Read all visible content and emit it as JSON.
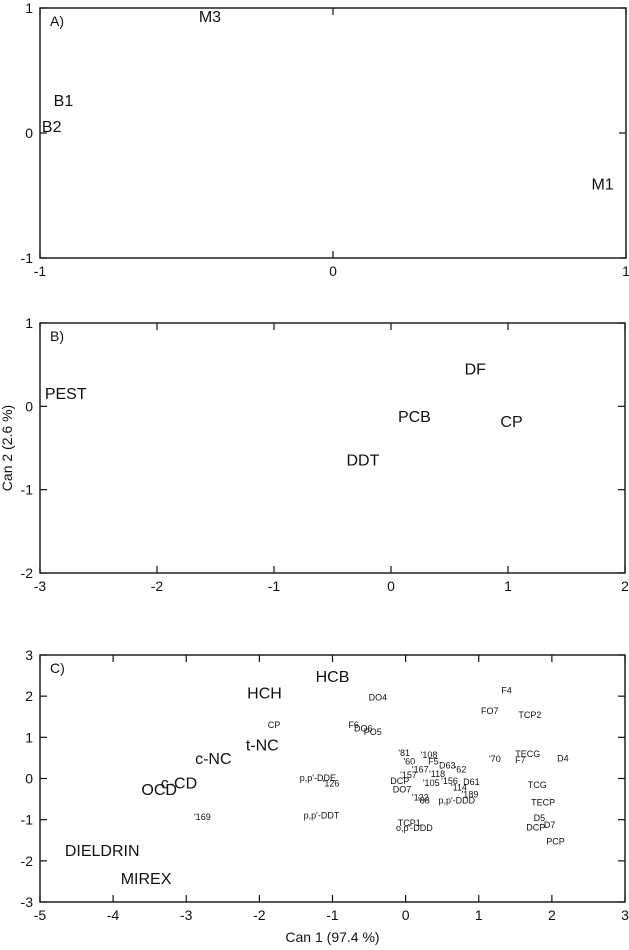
{
  "chart_data": [
    {
      "type": "scatter",
      "panel": "A)",
      "xlim": [
        -1,
        1
      ],
      "ylim": [
        -1,
        1
      ],
      "xticks": [
        -1,
        0,
        1
      ],
      "yticks": [
        -1,
        0,
        1
      ],
      "xlabel": "",
      "ylabel": "",
      "points": [
        {
          "label": "M3",
          "x": -0.42,
          "y": 0.92
        },
        {
          "label": "B1",
          "x": -0.92,
          "y": 0.25
        },
        {
          "label": "B2",
          "x": -0.96,
          "y": 0.04
        },
        {
          "label": "M1",
          "x": 0.92,
          "y": -0.42
        }
      ]
    },
    {
      "type": "scatter",
      "panel": "B)",
      "xlim": [
        -3,
        2
      ],
      "ylim": [
        -2,
        1
      ],
      "xticks": [
        -3,
        -2,
        -1,
        0,
        1,
        2
      ],
      "yticks": [
        -2,
        -1,
        0,
        1
      ],
      "xlabel": "",
      "ylabel": "Can 2 (2.6 %)",
      "points": [
        {
          "label": "PEST",
          "x": -2.78,
          "y": 0.14
        },
        {
          "label": "DF",
          "x": 0.72,
          "y": 0.43
        },
        {
          "label": "PCB",
          "x": 0.2,
          "y": -0.14
        },
        {
          "label": "CP",
          "x": 1.03,
          "y": -0.2
        },
        {
          "label": "DDT",
          "x": -0.24,
          "y": -0.66
        }
      ]
    },
    {
      "type": "scatter",
      "panel": "C)",
      "xlim": [
        -5,
        3
      ],
      "ylim": [
        -3,
        3
      ],
      "xticks": [
        -5,
        -4,
        -3,
        -2,
        -1,
        0,
        1,
        2,
        3
      ],
      "yticks": [
        -3,
        -2,
        -1,
        0,
        1,
        2,
        3
      ],
      "xlabel": "Can 1 (97.4 %)",
      "ylabel": "",
      "points": [
        {
          "label": "HCB",
          "x": -1.0,
          "y": 2.45,
          "size": "large"
        },
        {
          "label": "HCH",
          "x": -1.93,
          "y": 2.05,
          "size": "large"
        },
        {
          "label": "t-NC",
          "x": -1.96,
          "y": 0.78,
          "size": "large"
        },
        {
          "label": "c-NC",
          "x": -2.63,
          "y": 0.45,
          "size": "large"
        },
        {
          "label": "c-CD",
          "x": -3.1,
          "y": -0.14,
          "size": "large"
        },
        {
          "label": "OCD",
          "x": -3.37,
          "y": -0.3,
          "size": "large"
        },
        {
          "label": "DIELDRIN",
          "x": -4.15,
          "y": -1.78,
          "size": "large"
        },
        {
          "label": "MIREX",
          "x": -3.55,
          "y": -2.46,
          "size": "large"
        },
        {
          "label": "DO4",
          "x": -0.38,
          "y": 1.95,
          "size": "small"
        },
        {
          "label": "F4",
          "x": 1.38,
          "y": 2.12,
          "size": "small"
        },
        {
          "label": "FO7",
          "x": 1.15,
          "y": 1.62,
          "size": "small"
        },
        {
          "label": "TCP2",
          "x": 1.7,
          "y": 1.53,
          "size": "small"
        },
        {
          "label": "CP",
          "x": -1.8,
          "y": 1.28,
          "size": "small"
        },
        {
          "label": "F6",
          "x": -0.71,
          "y": 1.28,
          "size": "small"
        },
        {
          "label": "DO6",
          "x": -0.58,
          "y": 1.2,
          "size": "small"
        },
        {
          "label": "PO5",
          "x": -0.45,
          "y": 1.12,
          "size": "small"
        },
        {
          "label": "'81",
          "x": -0.02,
          "y": 0.6,
          "size": "small"
        },
        {
          "label": "'108",
          "x": 0.32,
          "y": 0.55,
          "size": "small"
        },
        {
          "label": "'60",
          "x": 0.05,
          "y": 0.4,
          "size": "small"
        },
        {
          "label": "F5",
          "x": 0.38,
          "y": 0.4,
          "size": "small"
        },
        {
          "label": "TECG",
          "x": 1.67,
          "y": 0.58,
          "size": "small"
        },
        {
          "label": "D4",
          "x": 2.15,
          "y": 0.47,
          "size": "small"
        },
        {
          "label": "'70",
          "x": 1.22,
          "y": 0.46,
          "size": "small"
        },
        {
          "label": "F7",
          "x": 1.57,
          "y": 0.43,
          "size": "small"
        },
        {
          "label": "D63",
          "x": 0.57,
          "y": 0.3,
          "size": "small"
        },
        {
          "label": "'167",
          "x": 0.2,
          "y": 0.2,
          "size": "small"
        },
        {
          "label": "'157",
          "x": 0.04,
          "y": 0.07,
          "size": "small"
        },
        {
          "label": "'118",
          "x": 0.43,
          "y": 0.1,
          "size": "small"
        },
        {
          "label": "'62",
          "x": 0.75,
          "y": 0.2,
          "size": "small"
        },
        {
          "label": "'156",
          "x": 0.6,
          "y": -0.08,
          "size": "small"
        },
        {
          "label": "D61",
          "x": 0.9,
          "y": -0.1,
          "size": "small"
        },
        {
          "label": "p,p'-DDE",
          "x": -1.2,
          "y": 0.0,
          "size": "small"
        },
        {
          "label": "DCP",
          "x": -0.08,
          "y": -0.08,
          "size": "small"
        },
        {
          "label": "DO7",
          "x": -0.05,
          "y": -0.28,
          "size": "small"
        },
        {
          "label": "'105",
          "x": 0.35,
          "y": -0.13,
          "size": "small"
        },
        {
          "label": "'114",
          "x": 0.73,
          "y": -0.23,
          "size": "small"
        },
        {
          "label": "'126",
          "x": -1.02,
          "y": -0.14,
          "size": "small"
        },
        {
          "label": "TCG",
          "x": 1.8,
          "y": -0.17,
          "size": "small"
        },
        {
          "label": "'122",
          "x": 0.2,
          "y": -0.48,
          "size": "small"
        },
        {
          "label": "'88",
          "x": 0.25,
          "y": -0.55,
          "size": "small"
        },
        {
          "label": "p,p'-DDD",
          "x": 0.7,
          "y": -0.55,
          "size": "small"
        },
        {
          "label": "'189",
          "x": 0.88,
          "y": -0.4,
          "size": "small"
        },
        {
          "label": "TECP",
          "x": 1.88,
          "y": -0.6,
          "size": "small"
        },
        {
          "label": "'169",
          "x": -2.78,
          "y": -0.95,
          "size": "small"
        },
        {
          "label": "p,p'-DDT",
          "x": -1.15,
          "y": -0.92,
          "size": "small"
        },
        {
          "label": "D5",
          "x": 1.83,
          "y": -0.97,
          "size": "small"
        },
        {
          "label": "TCP1",
          "x": 0.05,
          "y": -1.1,
          "size": "small"
        },
        {
          "label": "o,p'-DDD",
          "x": 0.12,
          "y": -1.22,
          "size": "small"
        },
        {
          "label": "DCP",
          "x": 1.78,
          "y": -1.2,
          "size": "small"
        },
        {
          "label": "D7",
          "x": 1.97,
          "y": -1.15,
          "size": "small"
        },
        {
          "label": "PCP",
          "x": 2.05,
          "y": -1.54,
          "size": "small"
        }
      ]
    }
  ]
}
